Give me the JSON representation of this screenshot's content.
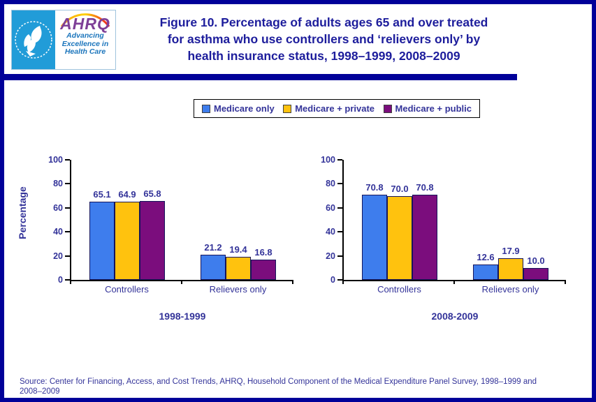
{
  "header": {
    "logo": {
      "ahrq_text": "AHRQ",
      "tagline_lines": [
        "Advancing",
        "Excellence in",
        "Health Care"
      ]
    },
    "title_lines": [
      "Figure 10. Percentage of adults ages 65 and over treated",
      "for asthma who use controllers and ‘relievers only’ by",
      "health insurance status, 1998–1999, 2008–2009"
    ]
  },
  "legend": {
    "position": "top",
    "items": [
      {
        "label": "Medicare only",
        "color": "#3E7DED"
      },
      {
        "label": "Medicare + private",
        "color": "#FFC20E"
      },
      {
        "label": "Medicare + public",
        "color": "#7B0D7D"
      }
    ]
  },
  "chart_data": [
    {
      "type": "bar",
      "title": "1998-1999",
      "categories": [
        "Controllers",
        "Relievers only"
      ],
      "series": [
        {
          "name": "Medicare only",
          "values": [
            65.1,
            21.2
          ]
        },
        {
          "name": "Medicare + private",
          "values": [
            64.9,
            19.4
          ]
        },
        {
          "name": "Medicare + public",
          "values": [
            65.8,
            16.8
          ]
        }
      ],
      "xlabel": "",
      "ylabel": "Percentage",
      "ylim": [
        0,
        100
      ],
      "yticks": [
        0,
        20,
        40,
        60,
        80,
        100
      ],
      "grid": false,
      "legend_position": "top"
    },
    {
      "type": "bar",
      "title": "2008-2009",
      "categories": [
        "Controllers",
        "Relievers only"
      ],
      "series": [
        {
          "name": "Medicare only",
          "values": [
            70.8,
            12.6
          ]
        },
        {
          "name": "Medicare + private",
          "values": [
            70.0,
            17.9
          ]
        },
        {
          "name": "Medicare + public",
          "values": [
            70.8,
            10.0
          ]
        }
      ],
      "xlabel": "",
      "ylabel": "",
      "ylim": [
        0,
        100
      ],
      "yticks": [
        0,
        20,
        40,
        60,
        80,
        100
      ],
      "grid": false,
      "legend_position": "top"
    }
  ],
  "source_lines": [
    "Source: Center for Financing, Access, and Cost Trends, AHRQ, Household Component of the Medical Expenditure Panel Survey,  1998–1999 and",
    "2008–2009"
  ],
  "colors": {
    "page_border": "#000099",
    "header_divider": "#000099",
    "title_text": "#1D1D9C",
    "label_text": "#333399",
    "axis": "#000000",
    "bar_border": "#15155C",
    "hhs_blue": "#219CD8",
    "ahrq_purple": "#7E3F97",
    "tagline_blue": "#1B75BC"
  }
}
